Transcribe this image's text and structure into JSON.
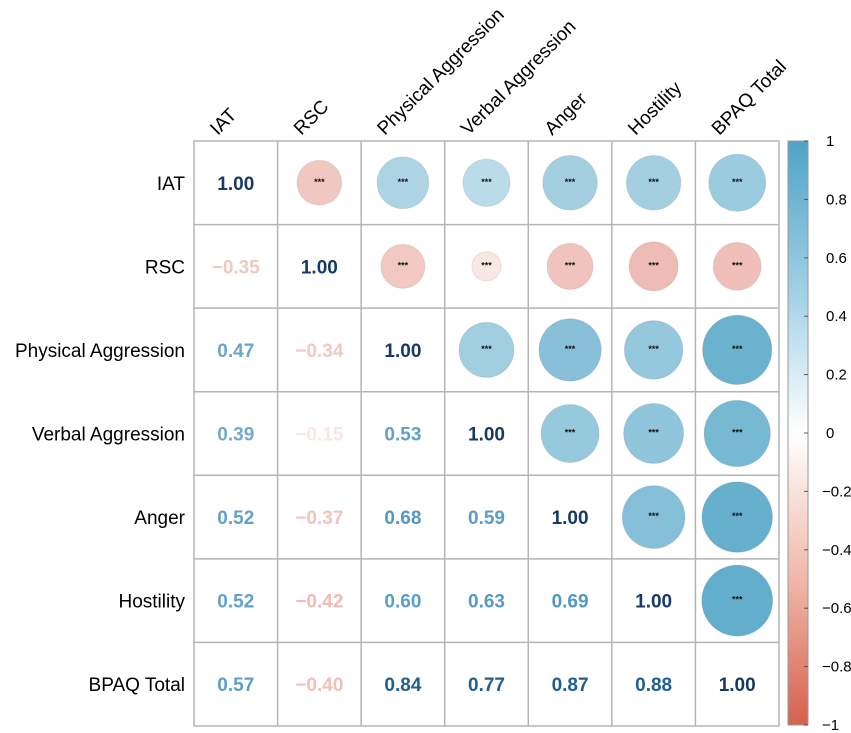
{
  "chart_data": {
    "type": "heatmap",
    "title": "",
    "variables": [
      "IAT",
      "RSC",
      "Physical Aggression",
      "Verbal Aggression",
      "Anger",
      "Hostility",
      "BPAQ Total"
    ],
    "matrix": [
      [
        1.0,
        -0.35,
        0.47,
        0.39,
        0.52,
        0.52,
        0.57
      ],
      [
        -0.35,
        1.0,
        -0.34,
        -0.15,
        -0.37,
        -0.42,
        -0.4
      ],
      [
        0.47,
        -0.34,
        1.0,
        0.53,
        0.68,
        0.6,
        0.84
      ],
      [
        0.39,
        -0.15,
        0.53,
        1.0,
        0.59,
        0.63,
        0.77
      ],
      [
        0.52,
        -0.37,
        0.68,
        0.59,
        1.0,
        0.69,
        0.87
      ],
      [
        0.52,
        -0.42,
        0.6,
        0.63,
        0.69,
        1.0,
        0.88
      ],
      [
        0.57,
        -0.4,
        0.84,
        0.77,
        0.87,
        0.88,
        1.0
      ]
    ],
    "lower_display": "number",
    "upper_display": "circle",
    "significance_marker": "***",
    "number_format_diagonal": "1.00",
    "colorbar": {
      "range": [
        -1,
        1
      ],
      "ticks": [
        "1",
        "0.8",
        "0.6",
        "0.4",
        "0.2",
        "0",
        "−0.2",
        "−0.4",
        "−0.6",
        "−0.8",
        "−1"
      ],
      "colors": {
        "negative": "#d6604d",
        "neutral": "#ffffff",
        "positive": "#4fa3c6",
        "diagonal_text": "#163a63"
      }
    },
    "legend_position": "right"
  }
}
